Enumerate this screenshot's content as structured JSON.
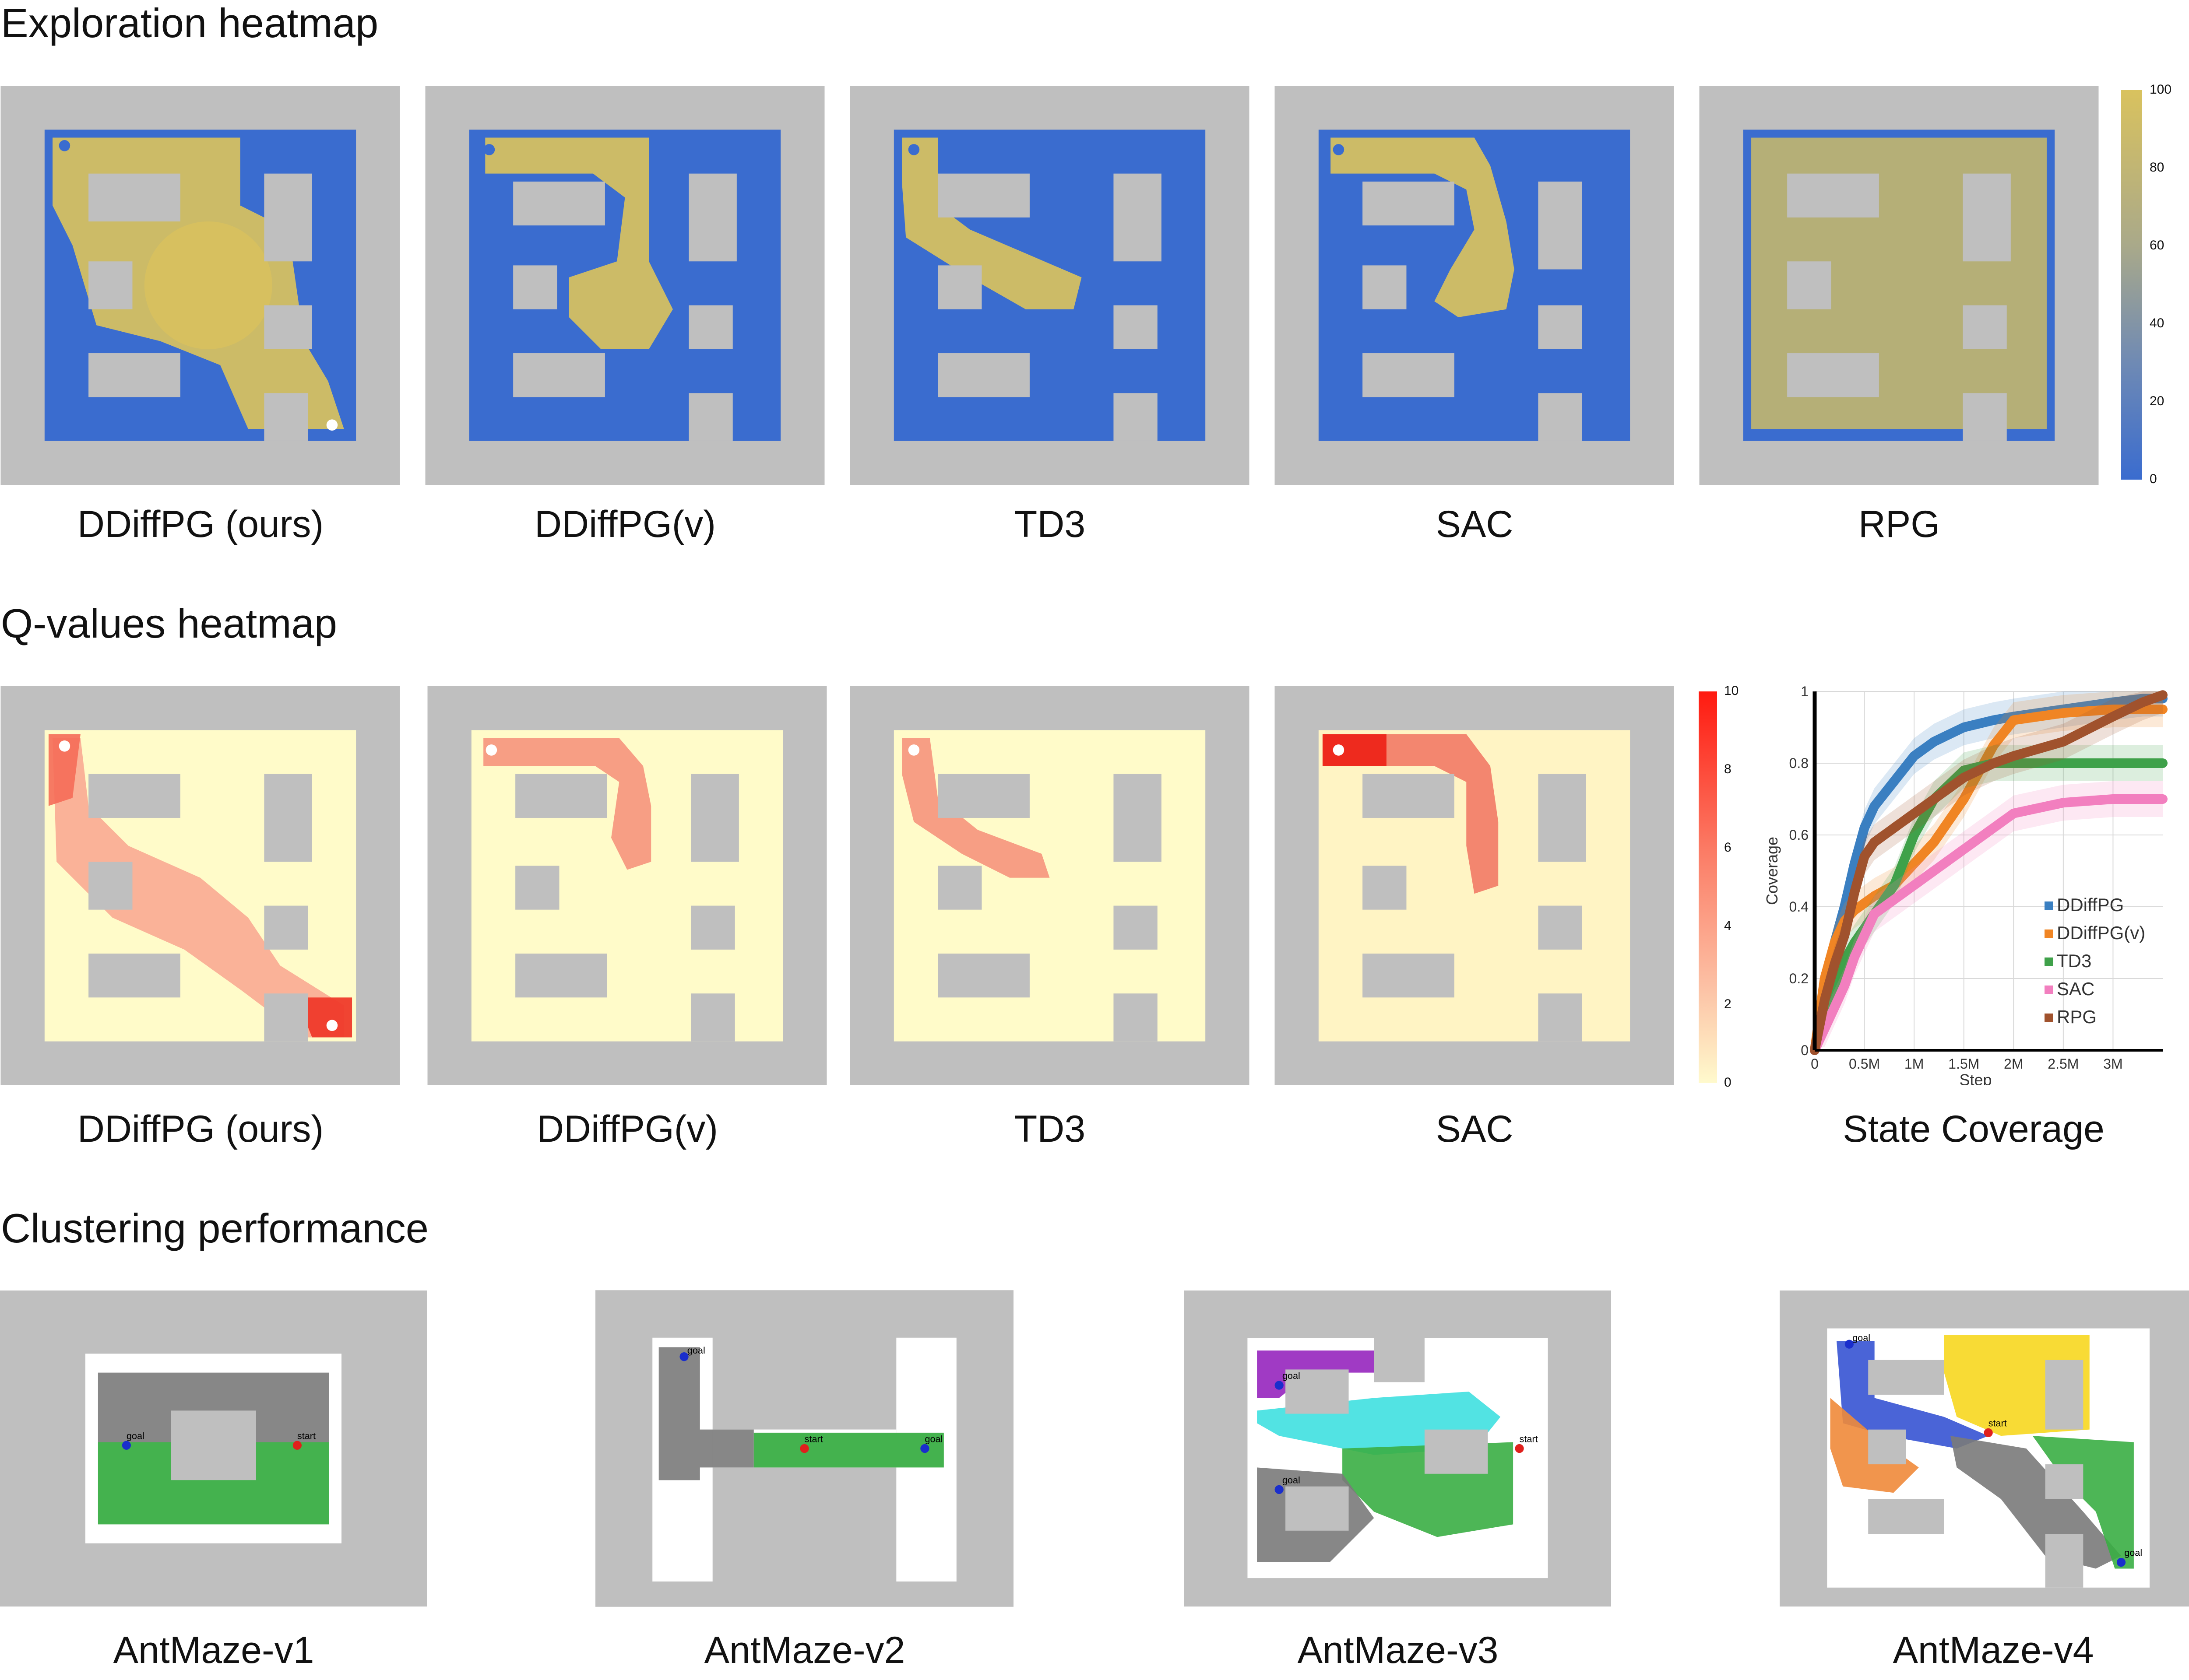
{
  "sections": {
    "exploration": "Exploration heatmap",
    "qvalues": "Q-values heatmap",
    "clustering": "Clustering performance"
  },
  "exploration_panels": [
    "DDiffPG (ours)",
    "DDiffPG(v)",
    "TD3",
    "SAC",
    "RPG"
  ],
  "qvalue_panels": [
    "DDiffPG (ours)",
    "DDiffPG(v)",
    "TD3",
    "SAC"
  ],
  "coverage_label": "State Coverage",
  "cluster_panels": [
    "AntMaze-v1",
    "AntMaze-v2",
    "AntMaze-v3",
    "AntMaze-v4"
  ],
  "exploration_colorbar": {
    "ticks": [
      "100",
      "80",
      "60",
      "40",
      "20",
      "0"
    ],
    "low_color": "#3a6ccf",
    "high_color": "#d9c25e"
  },
  "qvalue_colorbar": {
    "ticks": [
      "10",
      "8",
      "6",
      "4",
      "2",
      "0"
    ],
    "low_color": "#fffacd",
    "high_color": "#ff1a10"
  },
  "maze_labels": {
    "start": "start",
    "goal": "goal"
  },
  "colors": {
    "wall": "#bfbfbf",
    "explored": "#d9c25e",
    "unexplored": "#3a6ccf",
    "q_floor": "#fffbc9"
  },
  "chart_data": {
    "type": "line",
    "title": "",
    "xlabel": "Step",
    "ylabel": "Coverage",
    "xlim": [
      0,
      3.5
    ],
    "ylim": [
      0,
      1
    ],
    "x_tick_labels": [
      "0",
      "0.5M",
      "1M",
      "1.5M",
      "2M",
      "2.5M",
      "3M"
    ],
    "x_ticks": [
      0,
      0.5,
      1,
      1.5,
      2,
      2.5,
      3
    ],
    "y_tick_labels": [
      "0",
      "0.2",
      "0.4",
      "0.6",
      "0.8",
      "1"
    ],
    "y_ticks": [
      0,
      0.2,
      0.4,
      0.6,
      0.8,
      1
    ],
    "grid": true,
    "legend": "bottom-right",
    "x": [
      0,
      0.1,
      0.2,
      0.3,
      0.4,
      0.5,
      0.6,
      0.8,
      1.0,
      1.2,
      1.5,
      1.8,
      2.0,
      2.5,
      3.0,
      3.3,
      3.5
    ],
    "series": [
      {
        "name": "DDiffPG",
        "color": "#3a7fc1",
        "values": [
          0.0,
          0.18,
          0.3,
          0.4,
          0.52,
          0.62,
          0.68,
          0.75,
          0.82,
          0.86,
          0.9,
          0.92,
          0.93,
          0.95,
          0.97,
          0.98,
          0.98
        ]
      },
      {
        "name": "DDiffPG(v)",
        "color": "#f08524",
        "values": [
          0.0,
          0.2,
          0.3,
          0.36,
          0.39,
          0.41,
          0.43,
          0.46,
          0.52,
          0.58,
          0.7,
          0.85,
          0.92,
          0.94,
          0.95,
          0.95,
          0.95
        ]
      },
      {
        "name": "TD3",
        "color": "#3fa14a",
        "values": [
          0.0,
          0.1,
          0.18,
          0.25,
          0.3,
          0.34,
          0.38,
          0.46,
          0.6,
          0.7,
          0.78,
          0.8,
          0.8,
          0.8,
          0.8,
          0.8,
          0.8
        ]
      },
      {
        "name": "SAC",
        "color": "#f27fbf",
        "values": [
          0.0,
          0.06,
          0.12,
          0.18,
          0.26,
          0.32,
          0.38,
          0.42,
          0.46,
          0.5,
          0.56,
          0.62,
          0.66,
          0.69,
          0.7,
          0.7,
          0.7
        ]
      },
      {
        "name": "RPG",
        "color": "#a0522d",
        "values": [
          0.0,
          0.14,
          0.24,
          0.32,
          0.44,
          0.54,
          0.58,
          0.62,
          0.66,
          0.7,
          0.76,
          0.8,
          0.82,
          0.86,
          0.93,
          0.97,
          0.99
        ]
      }
    ]
  }
}
